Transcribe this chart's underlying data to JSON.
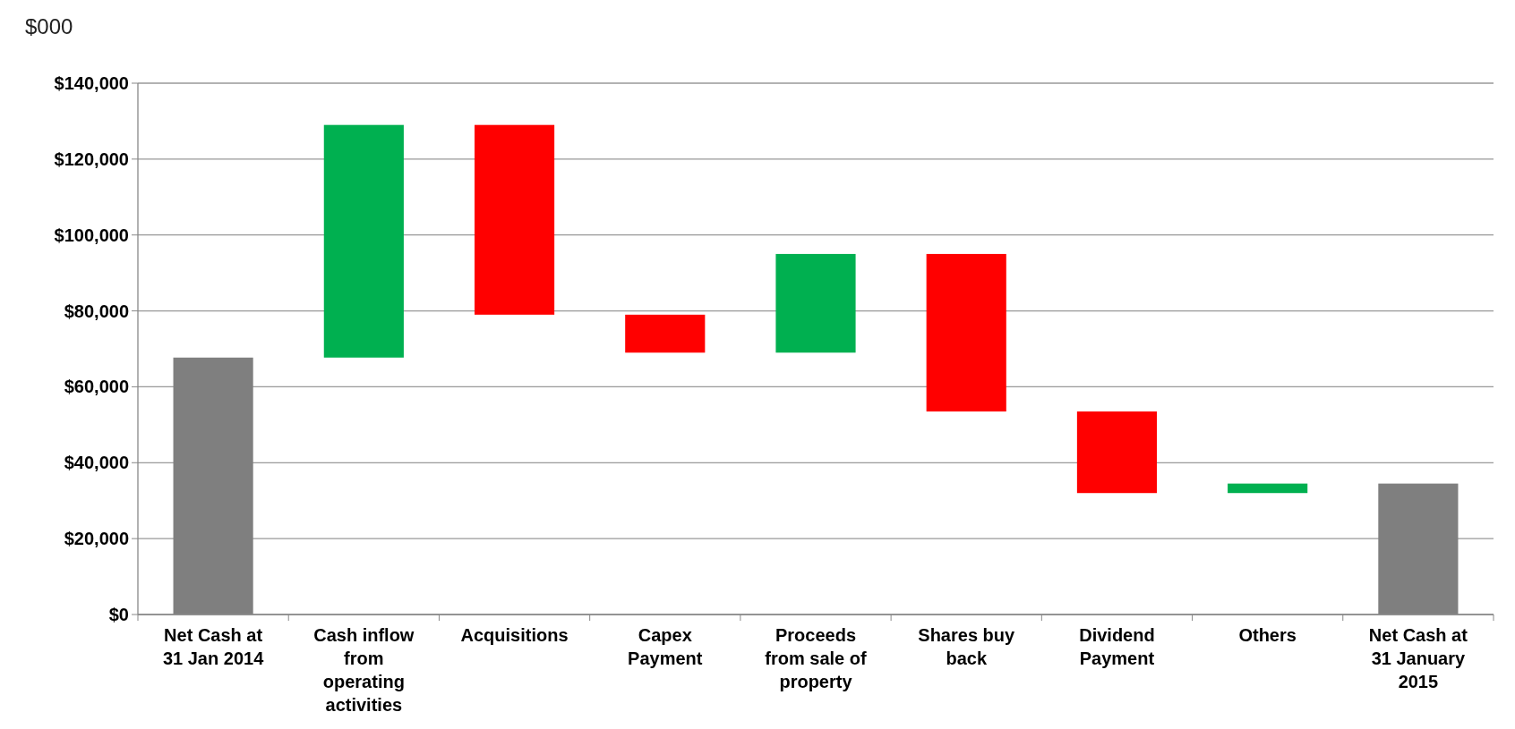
{
  "chart_data": {
    "type": "bar",
    "ylabel": "$000",
    "categories": [
      "Net Cash  at 31 Jan 2014",
      "Cash inflow from operating activities",
      "Acquisitions",
      "Capex Payment",
      "Proceeds from sale of property",
      "Shares buy back",
      "Dividend Payment",
      "Others",
      "Net Cash  at 31 January 2015"
    ],
    "values": [
      67700,
      61300,
      -50000,
      -10000,
      26000,
      -41500,
      -21500,
      2500,
      34500
    ],
    "base": [
      0,
      67700,
      129000,
      79000,
      69000,
      95000,
      53500,
      32000,
      0
    ],
    "colors": [
      "#7f7f7f",
      "#00b050",
      "#ff0000",
      "#ff0000",
      "#00b050",
      "#ff0000",
      "#ff0000",
      "#00b050",
      "#7f7f7f"
    ],
    "ylim": [
      0,
      140000
    ],
    "yticks": [
      {
        "value": 0,
        "label": "$0"
      },
      {
        "value": 20000,
        "label": "$20,000"
      },
      {
        "value": 40000,
        "label": "$40,000"
      },
      {
        "value": 60000,
        "label": "$60,000"
      },
      {
        "value": 80000,
        "label": "$80,000"
      },
      {
        "value": 100000,
        "label": "$100,000"
      },
      {
        "value": 120000,
        "label": "$120,000"
      },
      {
        "value": 140000,
        "label": "$140,000"
      }
    ],
    "grid": "y"
  }
}
